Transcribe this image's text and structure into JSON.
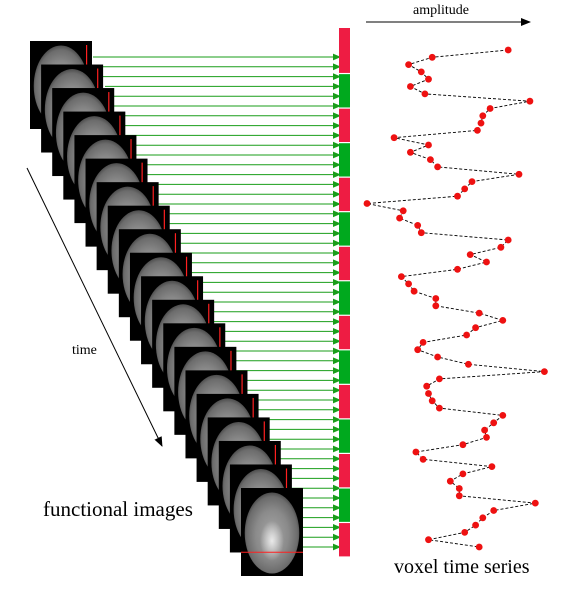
{
  "labels": {
    "amplitude": "amplitude",
    "time": "time",
    "functional_images": "functional images",
    "voxel_time_series": "voxel time series"
  },
  "colors": {
    "arrow": "#1a9e1a",
    "block_on": "#00a91e",
    "block_off": "#ee1c43",
    "point": "#ee1111",
    "brain_background": "#000000",
    "voxel_marker": "#ff2020",
    "text": "#000000"
  },
  "design": {
    "block_sequence": [
      "off",
      "on",
      "off",
      "on",
      "off",
      "on",
      "off",
      "on",
      "off",
      "on",
      "off",
      "on",
      "off",
      "on",
      "off"
    ],
    "image_count": 20,
    "time_points": 69
  },
  "chart_data": {
    "type": "line",
    "orientation": "vertical-time",
    "line_style": "dashed",
    "x_axis": "amplitude",
    "time_axis": "top-to-bottom",
    "amplitude": [
      0.78,
      0.36,
      0.23,
      0.3,
      0.34,
      0.24,
      0.32,
      0.9,
      0.68,
      0.64,
      0.63,
      0.61,
      0.15,
      0.34,
      0.24,
      0.35,
      0.39,
      0.84,
      0.58,
      0.54,
      0.5,
      0.0,
      0.2,
      0.18,
      0.28,
      0.3,
      0.78,
      0.74,
      0.57,
      0.66,
      0.5,
      0.19,
      0.23,
      0.26,
      0.38,
      0.38,
      0.62,
      0.75,
      0.6,
      0.55,
      0.31,
      0.28,
      0.39,
      0.56,
      0.98,
      0.4,
      0.33,
      0.34,
      0.36,
      0.4,
      0.75,
      0.7,
      0.65,
      0.66,
      0.53,
      0.27,
      0.31,
      0.69,
      0.53,
      0.46,
      0.51,
      0.51,
      0.93,
      0.7,
      0.64,
      0.6,
      0.54,
      0.34,
      0.62
    ]
  }
}
